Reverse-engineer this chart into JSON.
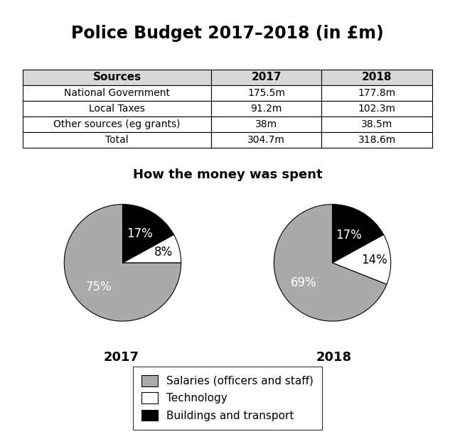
{
  "title": "Police Budget 2017–2018 (in £m)",
  "table": {
    "headers": [
      "Sources",
      "2017",
      "2018"
    ],
    "rows": [
      [
        "National Government",
        "175.5m",
        "177.8m"
      ],
      [
        "Local Taxes",
        "91.2m",
        "102.3m"
      ],
      [
        "Other sources (eg grants)",
        "38m",
        "38.5m"
      ],
      [
        "Total",
        "304.7m",
        "318.6m"
      ]
    ]
  },
  "pie_title": "How the money was spent",
  "pie_2017": {
    "label": "2017",
    "values": [
      75,
      8,
      17
    ],
    "pct_labels": [
      "75%",
      "8%",
      "17%"
    ],
    "colors": [
      "#aaaaaa",
      "#ffffff",
      "#000000"
    ],
    "startangle": 90,
    "label_radii": [
      0.58,
      0.72,
      0.58
    ]
  },
  "pie_2018": {
    "label": "2018",
    "values": [
      69,
      14,
      17
    ],
    "pct_labels": [
      "69%",
      "14%",
      "17%"
    ],
    "colors": [
      "#aaaaaa",
      "#ffffff",
      "#000000"
    ],
    "startangle": 90,
    "label_radii": [
      0.6,
      0.72,
      0.55
    ]
  },
  "legend_items": [
    {
      "label": "Salaries (officers and staff)",
      "color": "#aaaaaa"
    },
    {
      "label": "Technology",
      "color": "#ffffff"
    },
    {
      "label": "Buildings and transport",
      "color": "#000000"
    }
  ],
  "background_color": "#ffffff",
  "title_fontsize": 17,
  "pie_label_fontsize": 12,
  "pie_year_fontsize": 13,
  "table_header_fontsize": 11,
  "table_body_fontsize": 10,
  "pie_subtitle_fontsize": 13
}
